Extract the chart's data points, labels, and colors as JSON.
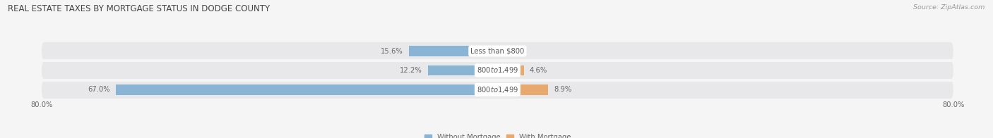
{
  "title": "REAL ESTATE TAXES BY MORTGAGE STATUS IN DODGE COUNTY",
  "source": "Source: ZipAtlas.com",
  "rows": [
    {
      "label": "Less than $800",
      "without_mortgage": 15.6,
      "with_mortgage": 0.26
    },
    {
      "label": "$800 to $1,499",
      "without_mortgage": 12.2,
      "with_mortgage": 4.6
    },
    {
      "label": "$800 to $1,499",
      "without_mortgage": 67.0,
      "with_mortgage": 8.9
    }
  ],
  "xlim": [
    -80,
    80
  ],
  "xtick_left": -80.0,
  "xtick_right": 80.0,
  "color_without": "#8ab4d4",
  "color_with": "#e8a96e",
  "bar_height": 0.52,
  "bg_row": "#e8e8ea",
  "bg_figure": "#f5f5f6",
  "row_sep_color": "#ffffff",
  "legend_labels": [
    "Without Mortgage",
    "With Mortgage"
  ],
  "title_fontsize": 8.5,
  "label_fontsize": 7.2,
  "value_fontsize": 7.2,
  "tick_fontsize": 7.2,
  "source_fontsize": 6.8,
  "legend_fontsize": 7.2
}
